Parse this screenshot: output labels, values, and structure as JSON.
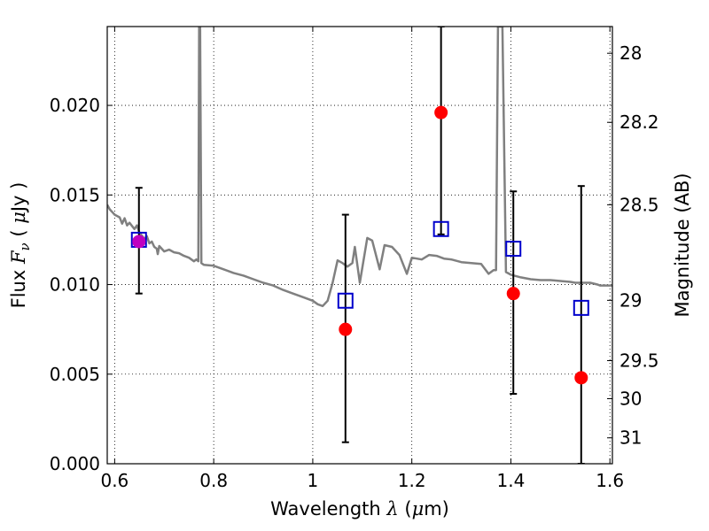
{
  "chart_data": {
    "type": "scatter",
    "title": "",
    "xlabel": {
      "prefix": "Wavelength  ",
      "symbol": "λ",
      "suffix": " (",
      "unit_symbol": "μ",
      "unit": "m)"
    },
    "ylabel": {
      "prefix": "Flux  ",
      "symbol": "F",
      "subscript": "ν",
      "suffix": "  ( ",
      "unit_symbol": "μ",
      "unit": "Jy )"
    },
    "y2label": "Magnitude (AB)",
    "xlim": [
      0.585,
      1.605
    ],
    "ylim": [
      0.0,
      0.0244
    ],
    "grid": true,
    "x_ticks": [
      {
        "value": 0.6,
        "label": "0.6"
      },
      {
        "value": 0.8,
        "label": "0.8"
      },
      {
        "value": 1.0,
        "label": "1"
      },
      {
        "value": 1.2,
        "label": "1.2"
      },
      {
        "value": 1.4,
        "label": "1.4"
      },
      {
        "value": 1.6,
        "label": "1.6"
      }
    ],
    "y_ticks": [
      {
        "value": 0.0,
        "label": "0.000"
      },
      {
        "value": 0.005,
        "label": "0.005"
      },
      {
        "value": 0.01,
        "label": "0.010"
      },
      {
        "value": 0.015,
        "label": "0.015"
      },
      {
        "value": 0.02,
        "label": "0.020"
      }
    ],
    "y2_ticks": [
      {
        "value": 28,
        "label": "28"
      },
      {
        "value": 28.2,
        "label": "28.2"
      },
      {
        "value": 28.5,
        "label": "28.5"
      },
      {
        "value": 29,
        "label": "29"
      },
      {
        "value": 29.5,
        "label": "29.5"
      },
      {
        "value": 30,
        "label": "30"
      },
      {
        "value": 31,
        "label": "31"
      }
    ],
    "template_spectrum": {
      "color": "#808080",
      "points": [
        [
          0.585,
          0.01445
        ],
        [
          0.59,
          0.0142
        ],
        [
          0.6,
          0.0139
        ],
        [
          0.61,
          0.01375
        ],
        [
          0.615,
          0.0134
        ],
        [
          0.62,
          0.0137
        ],
        [
          0.625,
          0.0133
        ],
        [
          0.63,
          0.01345
        ],
        [
          0.64,
          0.0131
        ],
        [
          0.645,
          0.0133
        ],
        [
          0.65,
          0.0129
        ],
        [
          0.66,
          0.01255
        ],
        [
          0.665,
          0.0127
        ],
        [
          0.67,
          0.0123
        ],
        [
          0.675,
          0.0124
        ],
        [
          0.68,
          0.0121
        ],
        [
          0.685,
          0.012
        ],
        [
          0.687,
          0.0117
        ],
        [
          0.69,
          0.01215
        ],
        [
          0.7,
          0.01185
        ],
        [
          0.71,
          0.01195
        ],
        [
          0.72,
          0.0118
        ],
        [
          0.73,
          0.01175
        ],
        [
          0.74,
          0.0116
        ],
        [
          0.75,
          0.0115
        ],
        [
          0.76,
          0.0113
        ],
        [
          0.765,
          0.0114
        ],
        [
          0.769,
          0.0113
        ],
        [
          0.7705,
          0.0244
        ],
        [
          0.7725,
          0.0244
        ],
        [
          0.775,
          0.0112
        ],
        [
          0.78,
          0.0111
        ],
        [
          0.8,
          0.01105
        ],
        [
          0.82,
          0.01085
        ],
        [
          0.84,
          0.01065
        ],
        [
          0.86,
          0.0105
        ],
        [
          0.88,
          0.0103
        ],
        [
          0.9,
          0.0101
        ],
        [
          0.92,
          0.00995
        ],
        [
          0.94,
          0.0097
        ],
        [
          0.96,
          0.0095
        ],
        [
          0.98,
          0.0093
        ],
        [
          1.0,
          0.0091
        ],
        [
          1.01,
          0.0089
        ],
        [
          1.02,
          0.0088
        ],
        [
          1.03,
          0.0091
        ],
        [
          1.04,
          0.0101
        ],
        [
          1.05,
          0.01135
        ],
        [
          1.06,
          0.0112
        ],
        [
          1.07,
          0.011
        ],
        [
          1.08,
          0.0112
        ],
        [
          1.085,
          0.0121
        ],
        [
          1.095,
          0.0101
        ],
        [
          1.11,
          0.0126
        ],
        [
          1.12,
          0.01245
        ],
        [
          1.135,
          0.01085
        ],
        [
          1.145,
          0.0122
        ],
        [
          1.16,
          0.0121
        ],
        [
          1.175,
          0.01165
        ],
        [
          1.19,
          0.0106
        ],
        [
          1.2,
          0.0115
        ],
        [
          1.22,
          0.0114
        ],
        [
          1.235,
          0.01165
        ],
        [
          1.25,
          0.0116
        ],
        [
          1.265,
          0.01145
        ],
        [
          1.28,
          0.0114
        ],
        [
          1.3,
          0.01125
        ],
        [
          1.32,
          0.0112
        ],
        [
          1.34,
          0.01115
        ],
        [
          1.355,
          0.0106
        ],
        [
          1.365,
          0.0108
        ],
        [
          1.37,
          0.0108
        ],
        [
          1.374,
          0.0244
        ],
        [
          1.383,
          0.0244
        ],
        [
          1.39,
          0.0107
        ],
        [
          1.4,
          0.01055
        ],
        [
          1.42,
          0.0104
        ],
        [
          1.44,
          0.0103
        ],
        [
          1.46,
          0.01025
        ],
        [
          1.48,
          0.01025
        ],
        [
          1.5,
          0.0102
        ],
        [
          1.52,
          0.01015
        ],
        [
          1.53,
          0.0101
        ],
        [
          1.545,
          0.0101
        ],
        [
          1.56,
          0.0101
        ],
        [
          1.575,
          0.01
        ],
        [
          1.58,
          0.00995
        ],
        [
          1.605,
          0.00995
        ]
      ]
    },
    "series": [
      {
        "marker": "circle",
        "color": "#ff0000",
        "points": [
          {
            "x": 0.649,
            "y": 0.0124,
            "err_low": 0.0095,
            "err_high": 0.0154,
            "overlap_color": "#c000c0"
          },
          {
            "x": 1.066,
            "y": 0.0075,
            "err_low": 0.0012,
            "err_high": 0.0139
          },
          {
            "x": 1.259,
            "y": 0.0196,
            "err_low": 0.0128,
            "err_high": 0.0244
          },
          {
            "x": 1.405,
            "y": 0.0095,
            "err_low": 0.0039,
            "err_high": 0.0152
          },
          {
            "x": 1.542,
            "y": 0.0048,
            "err_low": 0.0,
            "err_high": 0.0155
          }
        ]
      },
      {
        "marker": "square",
        "color": "#0000cc",
        "points": [
          {
            "x": 0.649,
            "y": 0.0125
          },
          {
            "x": 1.066,
            "y": 0.0091
          },
          {
            "x": 1.259,
            "y": 0.0131
          },
          {
            "x": 1.405,
            "y": 0.012
          },
          {
            "x": 1.542,
            "y": 0.0087
          }
        ]
      }
    ]
  }
}
